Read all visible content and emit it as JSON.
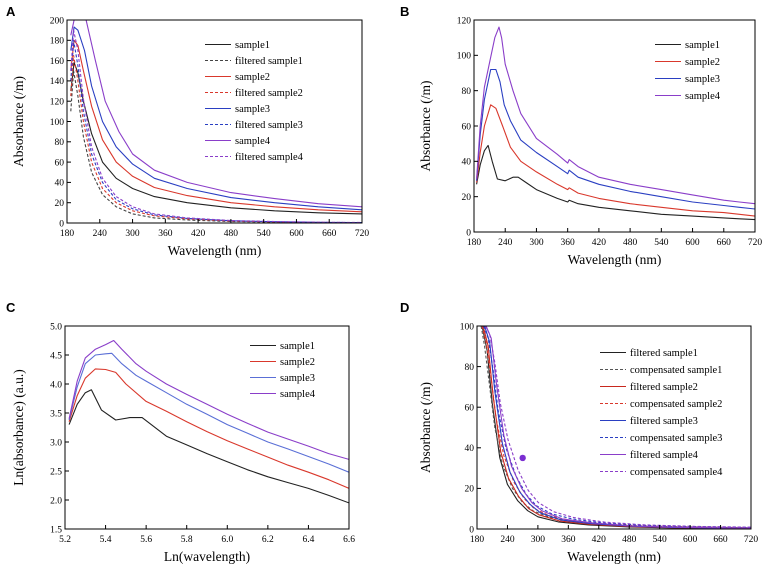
{
  "chart_data": [
    {
      "panel_id": "A",
      "type": "line",
      "xlabel": "Wavelength (nm)",
      "ylabel": "Absorbance (/m)",
      "xlim": [
        180,
        720
      ],
      "ylim": [
        0,
        200
      ],
      "xticks": [
        180,
        240,
        300,
        360,
        420,
        480,
        540,
        600,
        660,
        720
      ],
      "yticks": [
        0,
        20,
        40,
        60,
        80,
        100,
        120,
        140,
        160,
        180,
        200
      ],
      "legend_position": "top-right",
      "series": [
        {
          "name": "sample1",
          "color": "#222222",
          "dash": false,
          "x": [
            187,
            193,
            200,
            210,
            225,
            245,
            270,
            300,
            340,
            400,
            480,
            560,
            640,
            720
          ],
          "y": [
            130,
            158,
            148,
            120,
            88,
            60,
            44,
            34,
            26,
            20,
            15,
            12,
            10,
            9
          ]
        },
        {
          "name": "filtered sample1",
          "color": "#444444",
          "dash": true,
          "x": [
            187,
            192,
            200,
            210,
            225,
            245,
            270,
            300,
            340,
            400,
            480,
            560,
            640,
            720
          ],
          "y": [
            110,
            150,
            125,
            85,
            50,
            28,
            16,
            9,
            5,
            3,
            1.5,
            1,
            0.5,
            0.3
          ]
        },
        {
          "name": "sample2",
          "color": "#d9382c",
          "dash": false,
          "x": [
            187,
            193,
            200,
            210,
            225,
            245,
            270,
            300,
            340,
            400,
            480,
            560,
            640,
            720
          ],
          "y": [
            150,
            180,
            175,
            150,
            115,
            82,
            60,
            46,
            35,
            27,
            20,
            16,
            13,
            11
          ]
        },
        {
          "name": "filtered sample2",
          "color": "#d9382c",
          "dash": true,
          "x": [
            187,
            192,
            200,
            210,
            225,
            245,
            270,
            300,
            340,
            400,
            480,
            560,
            640,
            720
          ],
          "y": [
            125,
            165,
            140,
            100,
            60,
            34,
            20,
            12,
            7,
            4,
            2,
            1.2,
            0.6,
            0.3
          ]
        },
        {
          "name": "sample3",
          "color": "#2a3fc2",
          "dash": false,
          "x": [
            187,
            193,
            200,
            212,
            225,
            245,
            270,
            300,
            340,
            400,
            480,
            560,
            640,
            720
          ],
          "y": [
            170,
            193,
            190,
            170,
            135,
            100,
            75,
            58,
            44,
            34,
            25,
            20,
            16,
            13
          ]
        },
        {
          "name": "filtered sample3",
          "color": "#2a3fc2",
          "dash": true,
          "x": [
            187,
            192,
            200,
            210,
            225,
            245,
            270,
            300,
            340,
            400,
            480,
            560,
            640,
            720
          ],
          "y": [
            140,
            180,
            155,
            110,
            68,
            40,
            23,
            14,
            8,
            4.5,
            2.2,
            1.3,
            0.7,
            0.4
          ]
        },
        {
          "name": "sample4",
          "color": "#8a3ec9",
          "dash": false,
          "x": [
            187,
            193,
            200,
            215,
            232,
            250,
            275,
            300,
            340,
            400,
            480,
            560,
            640,
            720
          ],
          "y": [
            185,
            200,
            200,
            200,
            160,
            120,
            90,
            68,
            52,
            40,
            30,
            24,
            19,
            16
          ]
        },
        {
          "name": "filtered sample4",
          "color": "#8a3ec9",
          "dash": true,
          "x": [
            187,
            192,
            200,
            210,
            225,
            245,
            270,
            300,
            340,
            400,
            480,
            560,
            640,
            720
          ],
          "y": [
            150,
            190,
            170,
            122,
            75,
            44,
            26,
            16,
            9,
            5,
            2.5,
            1.5,
            0.8,
            0.5
          ]
        }
      ]
    },
    {
      "panel_id": "B",
      "type": "line",
      "xlabel": "Wavelength (nm)",
      "ylabel": "Absorbance (/m)",
      "xlim": [
        180,
        720
      ],
      "ylim": [
        0,
        120
      ],
      "xticks": [
        180,
        240,
        300,
        360,
        420,
        480,
        540,
        600,
        660,
        720
      ],
      "yticks": [
        0,
        20,
        40,
        60,
        80,
        100,
        120
      ],
      "legend_position": "top-right",
      "series": [
        {
          "name": "sample1",
          "color": "#222222",
          "dash": false,
          "x": [
            185,
            192,
            200,
            207,
            215,
            225,
            240,
            255,
            265,
            280,
            300,
            340,
            360,
            363,
            380,
            420,
            480,
            540,
            600,
            660,
            690,
            720
          ],
          "y": [
            27,
            38,
            46,
            49,
            40,
            30,
            29,
            31,
            31,
            28,
            24,
            19,
            17,
            18,
            16,
            14,
            12,
            10,
            9,
            8,
            7.5,
            7
          ]
        },
        {
          "name": "sample2",
          "color": "#d9382c",
          "dash": false,
          "x": [
            185,
            192,
            200,
            212,
            222,
            235,
            250,
            270,
            300,
            340,
            360,
            363,
            380,
            420,
            480,
            540,
            600,
            660,
            690,
            720
          ],
          "y": [
            28,
            45,
            60,
            72,
            70,
            60,
            48,
            40,
            34,
            27,
            24,
            25,
            22,
            19,
            16,
            14,
            12,
            11,
            10,
            9
          ]
        },
        {
          "name": "sample3",
          "color": "#2a3fc2",
          "dash": false,
          "x": [
            185,
            192,
            200,
            212,
            222,
            230,
            238,
            250,
            270,
            300,
            340,
            360,
            363,
            380,
            420,
            480,
            540,
            600,
            660,
            690,
            720
          ],
          "y": [
            29,
            55,
            75,
            92,
            92,
            85,
            72,
            63,
            52,
            45,
            37,
            33,
            35,
            31,
            27,
            23,
            20,
            17,
            15,
            14,
            13
          ]
        },
        {
          "name": "sample4",
          "color": "#8a3ec9",
          "dash": false,
          "x": [
            185,
            192,
            200,
            210,
            220,
            228,
            233,
            240,
            255,
            270,
            300,
            340,
            360,
            363,
            380,
            420,
            480,
            540,
            600,
            660,
            690,
            720
          ],
          "y": [
            30,
            60,
            82,
            96,
            110,
            116,
            110,
            95,
            80,
            67,
            53,
            44,
            39,
            41,
            37,
            31,
            27,
            24,
            21,
            18,
            17,
            16
          ]
        }
      ]
    },
    {
      "panel_id": "C",
      "type": "line",
      "xlabel": "Ln(wavelength)",
      "ylabel": "Ln(absorbance) (a.u.)",
      "xlim": [
        5.2,
        6.6
      ],
      "ylim": [
        1.5,
        5.0
      ],
      "xticks": [
        5.2,
        5.4,
        5.6,
        5.8,
        6.0,
        6.2,
        6.4,
        6.6
      ],
      "yticks": [
        1.5,
        2.0,
        2.5,
        3.0,
        3.5,
        4.0,
        4.5,
        5.0
      ],
      "legend_position": "top-right",
      "series": [
        {
          "name": "sample1",
          "color": "#222222",
          "dash": false,
          "x": [
            5.22,
            5.26,
            5.3,
            5.33,
            5.38,
            5.45,
            5.52,
            5.58,
            5.7,
            5.8,
            5.9,
            6.0,
            6.1,
            6.2,
            6.3,
            6.4,
            6.5,
            6.6
          ],
          "y": [
            3.3,
            3.65,
            3.85,
            3.9,
            3.55,
            3.38,
            3.42,
            3.42,
            3.1,
            2.95,
            2.8,
            2.66,
            2.52,
            2.4,
            2.3,
            2.2,
            2.08,
            1.95
          ]
        },
        {
          "name": "sample2",
          "color": "#d9382c",
          "dash": false,
          "x": [
            5.22,
            5.26,
            5.3,
            5.35,
            5.4,
            5.45,
            5.5,
            5.6,
            5.7,
            5.8,
            5.9,
            6.0,
            6.1,
            6.2,
            6.3,
            6.4,
            6.5,
            6.6
          ],
          "y": [
            3.35,
            3.8,
            4.1,
            4.26,
            4.25,
            4.2,
            4.0,
            3.7,
            3.53,
            3.35,
            3.18,
            3.02,
            2.88,
            2.74,
            2.6,
            2.48,
            2.35,
            2.2
          ]
        },
        {
          "name": "sample3",
          "color": "#5a6fd6",
          "dash": false,
          "x": [
            5.22,
            5.26,
            5.3,
            5.35,
            5.4,
            5.43,
            5.48,
            5.55,
            5.6,
            5.7,
            5.8,
            5.9,
            6.0,
            6.1,
            6.2,
            6.3,
            6.4,
            6.5,
            6.6
          ],
          "y": [
            3.38,
            3.95,
            4.35,
            4.5,
            4.52,
            4.53,
            4.35,
            4.15,
            4.05,
            3.85,
            3.65,
            3.48,
            3.3,
            3.15,
            3.0,
            2.88,
            2.75,
            2.62,
            2.48
          ]
        },
        {
          "name": "sample4",
          "color": "#8a3ec9",
          "dash": false,
          "x": [
            5.22,
            5.26,
            5.3,
            5.35,
            5.4,
            5.44,
            5.48,
            5.55,
            5.6,
            5.7,
            5.8,
            5.9,
            6.0,
            6.1,
            6.2,
            6.3,
            6.4,
            6.5,
            6.6
          ],
          "y": [
            3.4,
            4.05,
            4.45,
            4.6,
            4.68,
            4.75,
            4.6,
            4.35,
            4.22,
            4.0,
            3.82,
            3.65,
            3.48,
            3.32,
            3.17,
            3.05,
            2.93,
            2.8,
            2.7
          ]
        }
      ]
    },
    {
      "panel_id": "D",
      "type": "line",
      "xlabel": "Wavelength (nm)",
      "ylabel": "Absorbance (/m)",
      "xlim": [
        180,
        720
      ],
      "ylim": [
        0,
        100
      ],
      "xticks": [
        180,
        240,
        300,
        360,
        420,
        480,
        540,
        600,
        660,
        720
      ],
      "yticks": [
        0,
        20,
        40,
        60,
        80,
        100
      ],
      "legend_position": "top-right",
      "marker_point": {
        "x": 270,
        "y": 35,
        "color": "#7a2ed1"
      },
      "series": [
        {
          "name": "filtered sample1",
          "color": "#222222",
          "dash": false,
          "x": [
            190,
            200,
            210,
            225,
            240,
            260,
            280,
            300,
            340,
            400,
            480,
            560,
            640,
            720
          ],
          "y": [
            100,
            88,
            62,
            35,
            22,
            14,
            9,
            6,
            3.5,
            2,
            1,
            0.6,
            0.4,
            0.3
          ]
        },
        {
          "name": "compensated sample1",
          "color": "#555555",
          "dash": true,
          "x": [
            188,
            195,
            205,
            215,
            230,
            250,
            270,
            290,
            320,
            360,
            420,
            500,
            600,
            720
          ],
          "y": [
            100,
            90,
            70,
            50,
            32,
            20,
            13,
            9,
            6,
            4,
            2.5,
            1.5,
            1,
            0.6
          ]
        },
        {
          "name": "filtered sample2",
          "color": "#c8281e",
          "dash": false,
          "x": [
            192,
            202,
            212,
            227,
            242,
            262,
            282,
            302,
            342,
            402,
            482,
            562,
            642,
            720
          ],
          "y": [
            100,
            90,
            65,
            38,
            25,
            16,
            10,
            7,
            4,
            2.3,
            1.2,
            0.7,
            0.5,
            0.3
          ]
        },
        {
          "name": "compensated sample2",
          "color": "#d9382c",
          "dash": true,
          "x": [
            190,
            198,
            208,
            218,
            233,
            253,
            273,
            293,
            323,
            363,
            423,
            503,
            603,
            720
          ],
          "y": [
            100,
            92,
            74,
            54,
            36,
            23,
            15,
            10,
            6.5,
            4.3,
            2.7,
            1.6,
            1.1,
            0.7
          ]
        },
        {
          "name": "filtered sample3",
          "color": "#2a3fc2",
          "dash": false,
          "x": [
            195,
            205,
            215,
            230,
            245,
            265,
            285,
            305,
            345,
            405,
            485,
            565,
            645,
            720
          ],
          "y": [
            100,
            92,
            68,
            42,
            28,
            18,
            12,
            8,
            4.5,
            2.6,
            1.4,
            0.8,
            0.5,
            0.4
          ]
        },
        {
          "name": "compensated sample3",
          "color": "#2a3fc2",
          "dash": true,
          "x": [
            193,
            202,
            212,
            222,
            237,
            257,
            277,
            297,
            327,
            367,
            427,
            507,
            607,
            720
          ],
          "y": [
            100,
            94,
            78,
            58,
            40,
            26,
            17,
            11.5,
            7.5,
            5,
            3,
            1.8,
            1.2,
            0.8
          ]
        },
        {
          "name": "filtered sample4",
          "color": "#8a3ec9",
          "dash": false,
          "x": [
            198,
            208,
            218,
            233,
            248,
            268,
            288,
            308,
            348,
            408,
            488,
            568,
            648,
            720
          ],
          "y": [
            100,
            94,
            72,
            46,
            31,
            20,
            13,
            9,
            5,
            3,
            1.5,
            0.9,
            0.6,
            0.4
          ]
        },
        {
          "name": "compensated sample4",
          "color": "#8a3ec9",
          "dash": true,
          "x": [
            196,
            205,
            215,
            226,
            241,
            261,
            281,
            301,
            331,
            371,
            431,
            511,
            611,
            720
          ],
          "y": [
            100,
            96,
            82,
            62,
            44,
            29,
            19,
            13,
            8.5,
            5.6,
            3.4,
            2,
            1.3,
            0.9
          ]
        }
      ]
    }
  ]
}
